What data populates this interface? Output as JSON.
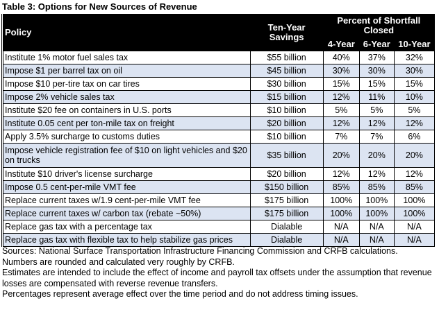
{
  "title": "Table 3: Options for New Sources of Revenue",
  "header": {
    "policy": "Policy",
    "savings": "Ten-Year Savings",
    "pct_group": "Percent of Shortfall Closed",
    "years": [
      "4-Year",
      "6-Year",
      "10-Year"
    ]
  },
  "rows": [
    {
      "policy": "Institute 1% motor fuel sales tax",
      "savings": "$55 billion",
      "y4": "40%",
      "y6": "37%",
      "y10": "32%"
    },
    {
      "policy": "Impose $1 per barrel tax on oil",
      "savings": "$45 billion",
      "y4": "30%",
      "y6": "30%",
      "y10": "30%"
    },
    {
      "policy": "Impose $10 per-tire tax on car tires",
      "savings": "$30 billion",
      "y4": "15%",
      "y6": "15%",
      "y10": "15%"
    },
    {
      "policy": "Impose 2% vehicle sales tax",
      "savings": "$15 billion",
      "y4": "12%",
      "y6": "11%",
      "y10": "10%"
    },
    {
      "policy": "Institute $20 fee on containers in U.S. ports",
      "savings": "$10 billion",
      "y4": "5%",
      "y6": "5%",
      "y10": "5%"
    },
    {
      "policy": "Institute 0.05 cent per ton-mile tax on freight",
      "savings": "$20 billion",
      "y4": "12%",
      "y6": "12%",
      "y10": "12%"
    },
    {
      "policy": "Apply 3.5% surcharge to customs duties",
      "savings": "$10 billion",
      "y4": "7%",
      "y6": "7%",
      "y10": "6%"
    },
    {
      "policy": "Impose vehicle registration fee of $10 on light vehicles and $20 on trucks",
      "savings": "$35 billion",
      "y4": "20%",
      "y6": "20%",
      "y10": "20%"
    },
    {
      "policy": "Institute $10 driver's license surcharge",
      "savings": "$20 billion",
      "y4": "12%",
      "y6": "12%",
      "y10": "12%"
    },
    {
      "policy": "Impose 0.5 cent-per-mile VMT fee",
      "savings": "$150 billion",
      "y4": "85%",
      "y6": "85%",
      "y10": "85%"
    },
    {
      "policy": "Replace current taxes w/1.9 cent-per-mile VMT fee",
      "savings": "$175 billion",
      "y4": "100%",
      "y6": "100%",
      "y10": "100%"
    },
    {
      "policy": "Replace current taxes w/ carbon tax (rebate ~50%)",
      "savings": "$175 billion",
      "y4": "100%",
      "y6": "100%",
      "y10": "100%"
    },
    {
      "policy": "Replace gas tax with a percentage tax",
      "savings": "Dialable",
      "y4": "N/A",
      "y6": "N/A",
      "y10": "N/A"
    },
    {
      "policy": "Replace gas tax with flexible tax to help stabilize gas prices",
      "savings": "Dialable",
      "y4": "N/A",
      "y6": "N/A",
      "y10": "N/A"
    }
  ],
  "notes": [
    "Sources: National Surface Transportation Infrastructure Financing Commission and CRFB calculations.",
    "Numbers are rounded and calculated very roughly by CRFB.",
    "Estimates are intended to include the effect of income and payroll tax offsets under the assumption that revenue losses are compensated with reverse revenue transfers.",
    "Percentages represent average effect over the time period and do not address timing issues."
  ],
  "colors": {
    "header_bg": "#000000",
    "alt_row_bg": "#dce4f2"
  }
}
